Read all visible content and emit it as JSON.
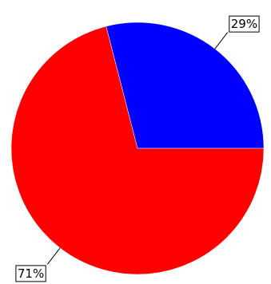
{
  "chart_data": {
    "type": "pie",
    "categories": [
      null,
      null
    ],
    "values": [
      29,
      71
    ],
    "value_labels": [
      "29%",
      "71%"
    ],
    "colors": [
      "#0000ff",
      "#ff0000"
    ]
  }
}
